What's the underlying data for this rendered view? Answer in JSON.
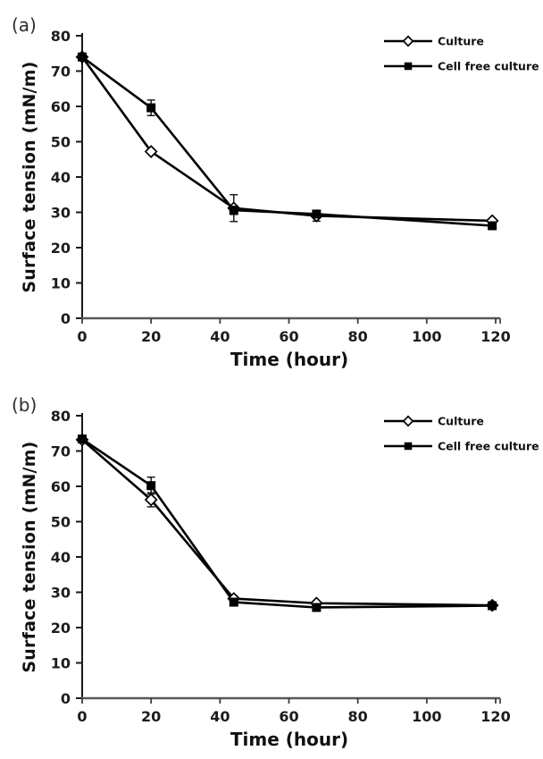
{
  "figure": {
    "background": "#ffffff",
    "colors": {
      "series_line": "#000000",
      "x_axis": "#595959",
      "y_axis": "#1a1a1a",
      "tick_text": "#1c1c1c",
      "error_bar": "#111111"
    }
  },
  "chart_data": [
    {
      "type": "line",
      "panel": "(a)",
      "title": "",
      "xlabel": "Time (hour)",
      "ylabel": "Surface tension (mN/m)",
      "xlim": [
        0,
        120
      ],
      "ylim": [
        0,
        80
      ],
      "xticks": [
        0,
        20,
        40,
        60,
        80,
        100,
        120
      ],
      "yticks": [
        0,
        10,
        20,
        30,
        40,
        50,
        60,
        70,
        80
      ],
      "grid": false,
      "legend_position": "top-right",
      "x": [
        0,
        20,
        44,
        68,
        119
      ],
      "series": [
        {
          "name": "Culture",
          "marker": "open-diamond",
          "values": [
            74.0,
            47.2,
            31.2,
            29.0,
            27.6
          ],
          "yerr": [
            0.8,
            0.6,
            3.8,
            1.5,
            0.5
          ]
        },
        {
          "name": "Cell free culture",
          "marker": "filled-square",
          "values": [
            74.0,
            59.6,
            30.6,
            29.5,
            26.2
          ],
          "yerr": [
            0.8,
            2.2,
            1.2,
            0.9,
            0.5
          ]
        }
      ]
    },
    {
      "type": "line",
      "panel": "(b)",
      "title": "",
      "xlabel": "Time (hour)",
      "ylabel": "Surface tension (mN/m)",
      "xlim": [
        0,
        120
      ],
      "ylim": [
        0,
        80
      ],
      "xticks": [
        0,
        20,
        40,
        60,
        80,
        100,
        120
      ],
      "yticks": [
        0,
        10,
        20,
        30,
        40,
        50,
        60,
        70,
        80
      ],
      "grid": false,
      "legend_position": "top-right",
      "x": [
        0,
        20,
        44,
        68,
        119
      ],
      "series": [
        {
          "name": "Culture",
          "marker": "open-diamond",
          "values": [
            73.2,
            56.2,
            28.2,
            26.9,
            26.3
          ],
          "yerr": [
            0.5,
            2.0,
            0.8,
            0.5,
            0.4
          ]
        },
        {
          "name": "Cell free culture",
          "marker": "filled-square",
          "values": [
            73.4,
            60.2,
            27.2,
            25.7,
            26.2
          ],
          "yerr": [
            0.5,
            2.4,
            0.6,
            1.0,
            0.8
          ]
        }
      ]
    }
  ]
}
